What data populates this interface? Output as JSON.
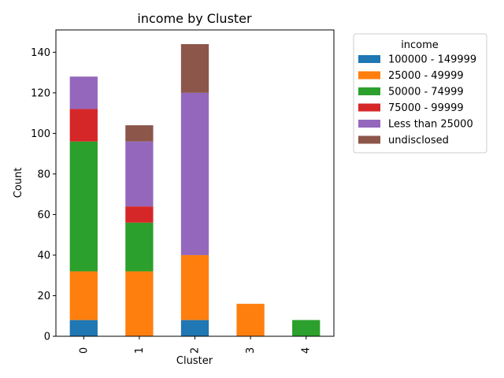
{
  "chart_data": {
    "type": "bar",
    "stacked": true,
    "title": "income by Cluster",
    "xlabel": "Cluster",
    "ylabel": "Count",
    "categories": [
      "0",
      "1",
      "2",
      "3",
      "4"
    ],
    "ylim": [
      0,
      151
    ],
    "yticks": [
      0,
      20,
      40,
      60,
      80,
      100,
      120,
      140
    ],
    "legend_title": "income",
    "legend_placement": "outside right, top",
    "series": [
      {
        "name": "100000 - 149999",
        "color": "#1f77b4",
        "values": [
          8,
          0,
          8,
          0,
          0
        ]
      },
      {
        "name": "25000 - 49999",
        "color": "#ff7f0e",
        "values": [
          24,
          32,
          32,
          16,
          0
        ]
      },
      {
        "name": "50000 - 74999",
        "color": "#2ca02c",
        "values": [
          64,
          24,
          0,
          0,
          8
        ]
      },
      {
        "name": "75000 - 99999",
        "color": "#d62728",
        "values": [
          16,
          8,
          0,
          0,
          0
        ]
      },
      {
        "name": "Less than 25000",
        "color": "#9467bd",
        "values": [
          16,
          32,
          80,
          0,
          0
        ]
      },
      {
        "name": "undisclosed",
        "color": "#8c564b",
        "values": [
          0,
          8,
          24,
          0,
          0
        ]
      }
    ]
  }
}
